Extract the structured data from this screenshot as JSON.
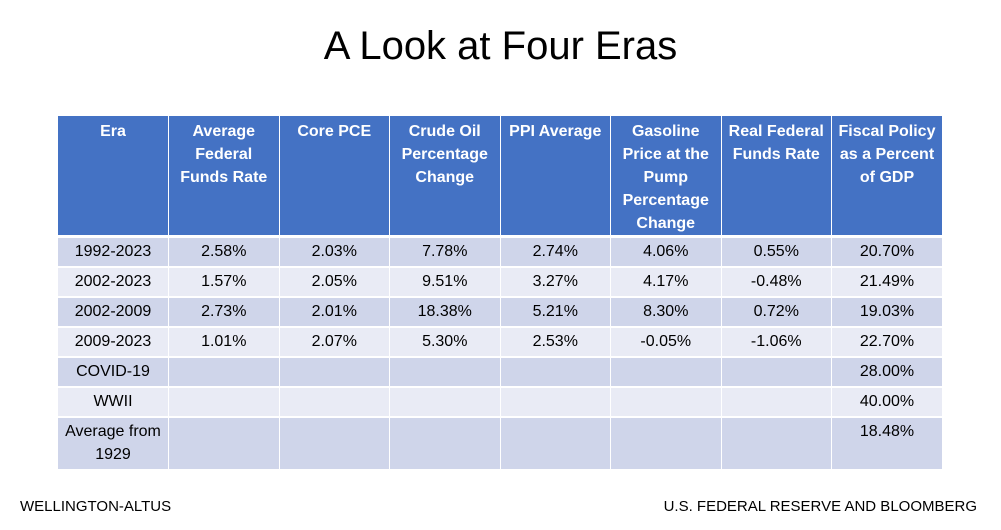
{
  "title": "A Look at Four Eras",
  "table": {
    "headers": [
      "Era",
      "Average Federal Funds Rate",
      "Core PCE",
      "Crude Oil Percentage Change",
      "PPI Average",
      "Gasoline Price at the Pump Percentage Change",
      "Real Federal Funds Rate",
      "Fiscal Policy as a Percent of GDP"
    ],
    "rows": [
      [
        "1992-2023",
        "2.58%",
        "2.03%",
        "7.78%",
        "2.74%",
        "4.06%",
        "0.55%",
        "20.70%"
      ],
      [
        "2002-2023",
        "1.57%",
        "2.05%",
        "9.51%",
        "3.27%",
        "4.17%",
        "-0.48%",
        "21.49%"
      ],
      [
        "2002-2009",
        "2.73%",
        "2.01%",
        "18.38%",
        "5.21%",
        "8.30%",
        "0.72%",
        "19.03%"
      ],
      [
        "2009-2023",
        "1.01%",
        "2.07%",
        "5.30%",
        "2.53%",
        "-0.05%",
        "-1.06%",
        "22.70%"
      ],
      [
        "COVID-19",
        "",
        "",
        "",
        "",
        "",
        "",
        "28.00%"
      ],
      [
        "WWII",
        "",
        "",
        "",
        "",
        "",
        "",
        "40.00%"
      ],
      [
        "Average from 1929",
        "",
        "",
        "",
        "",
        "",
        "",
        "18.48%"
      ]
    ]
  },
  "footer": {
    "left": "WELLINGTON-ALTUS",
    "right": "U.S. FEDERAL RESERVE AND BLOOMBERG"
  },
  "colors": {
    "header_bg": "#4472c4",
    "row_odd": "#cfd5ea",
    "row_even": "#e9ebf5"
  }
}
